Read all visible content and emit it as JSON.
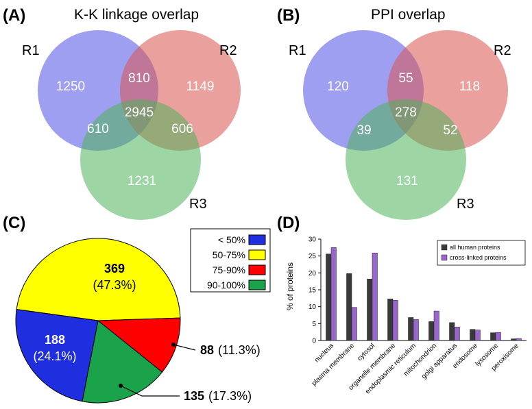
{
  "chart_data": [
    {
      "type": "venn",
      "panel": "(A)",
      "title": "K-K linkage overlap",
      "sets": [
        "R1",
        "R2",
        "R3"
      ],
      "set_colors": {
        "R1": "#5050e8",
        "R2": "#d9534f",
        "R3": "#4fb35a"
      },
      "regions": [
        {
          "sets": "R1",
          "value": "1250"
        },
        {
          "sets": "R2",
          "value": "1149"
        },
        {
          "sets": "R3",
          "value": "1231"
        },
        {
          "sets": "R1∩R2",
          "value": "810"
        },
        {
          "sets": "R1∩R3",
          "value": "610"
        },
        {
          "sets": "R2∩R3",
          "value": "606"
        },
        {
          "sets": "R1∩R2∩R3",
          "value": "2945"
        }
      ]
    },
    {
      "type": "venn",
      "panel": "(B)",
      "title": "PPI overlap",
      "sets": [
        "R1",
        "R2",
        "R3"
      ],
      "set_colors": {
        "R1": "#5050e8",
        "R2": "#d9534f",
        "R3": "#4fb35a"
      },
      "regions": [
        {
          "sets": "R1",
          "value": "120"
        },
        {
          "sets": "R2",
          "value": "118"
        },
        {
          "sets": "R3",
          "value": "131"
        },
        {
          "sets": "R1∩R2",
          "value": "55"
        },
        {
          "sets": "R1∩R3",
          "value": "39"
        },
        {
          "sets": "R2∩R3",
          "value": "52"
        },
        {
          "sets": "R1∩R2∩R3",
          "value": "278"
        }
      ]
    },
    {
      "type": "pie",
      "panel": "(C)",
      "legend": [
        "< 50%",
        "50-75%",
        "75-90%",
        "90-100%"
      ],
      "legend_placement": "top-right",
      "slices": [
        {
          "category": "50-75%",
          "value": 369,
          "percent_label": "(47.3%)",
          "color": "#ffff00"
        },
        {
          "category": "75-90%",
          "value": 88,
          "percent_label": "(11.3%)",
          "color": "#ff0000"
        },
        {
          "category": "90-100%",
          "value": 135,
          "percent_label": "(17.3%)",
          "color": "#1aa34a"
        },
        {
          "category": "< 50%",
          "value": 188,
          "percent_label": "(24.1%)",
          "color": "#1f2fe0"
        }
      ]
    },
    {
      "type": "bar",
      "panel": "(D)",
      "ylabel": "% of proteins",
      "ylim": [
        0,
        30
      ],
      "yticks": [
        "0",
        "5",
        "10",
        "15",
        "20",
        "25",
        "30"
      ],
      "grid": false,
      "legend_placement": "top-right",
      "categories": [
        "nucleus",
        "plasma membrane",
        "cytosol",
        "organelle membrane",
        "endoplasmic reticulum",
        "mitochondrion",
        "golgi apparatus",
        "endosome",
        "lysosome",
        "peroxisome"
      ],
      "series": [
        {
          "name": "all human proteins",
          "color": "#3a3a3a",
          "values": [
            25.6,
            19.8,
            18.2,
            12.3,
            6.8,
            5.6,
            5.3,
            3.3,
            2.3,
            0.5
          ]
        },
        {
          "name": "cross-linked proteins",
          "color": "#9966cc",
          "values": [
            27.5,
            9.8,
            25.9,
            11.9,
            6.2,
            8.7,
            4.0,
            3.1,
            2.4,
            0.6
          ]
        }
      ]
    }
  ]
}
